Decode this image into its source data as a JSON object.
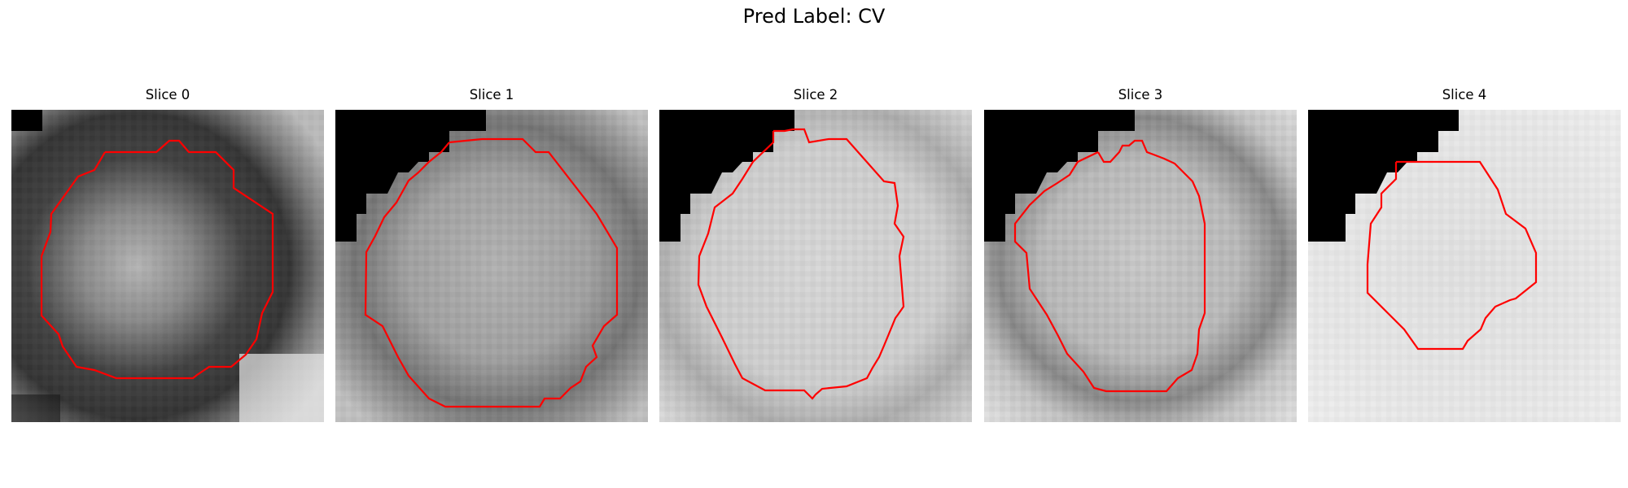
{
  "figure": {
    "title": "Pred Label: CV"
  },
  "slices": [
    {
      "title": "Slice 0"
    },
    {
      "title": "Slice 1"
    },
    {
      "title": "Slice 2"
    },
    {
      "title": "Slice 3"
    },
    {
      "title": "Slice 4"
    }
  ],
  "colors": {
    "contour": "#ff0000",
    "mask": "#000000",
    "background": "#ffffff"
  }
}
